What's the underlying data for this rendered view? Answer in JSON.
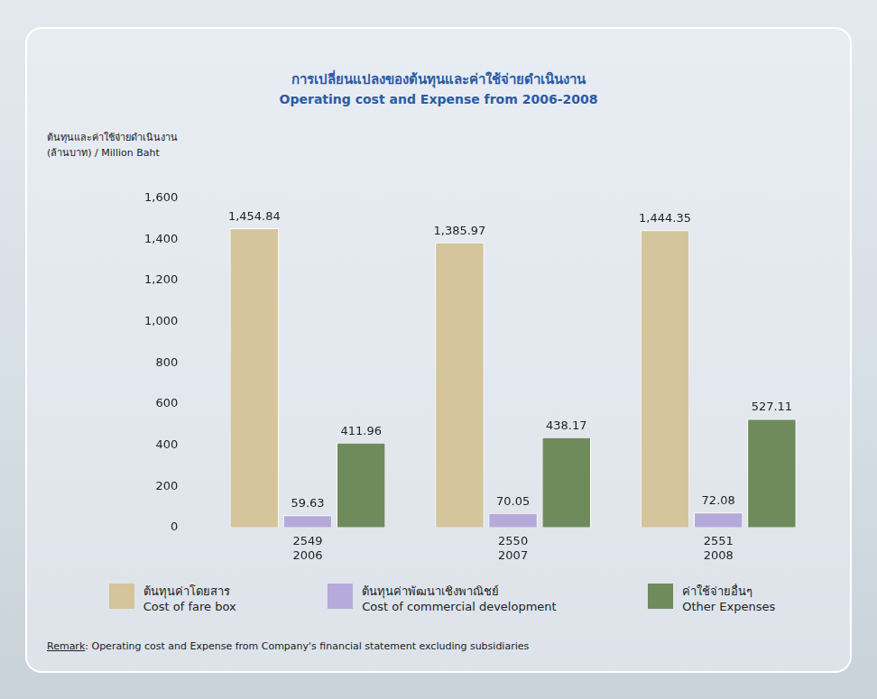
{
  "chart_data": {
    "type": "bar",
    "title": "การเปลี่ยนแปลงของต้นทุนและค่าใช้จ่ายดำเนินงาน",
    "subtitle": "Operating cost and Expense from 2006-2008",
    "y_label": "ต้นทุนและค่าใช้จ่ายดำเนินงาน\n(ล้านบาท) / Million Baht",
    "categories": [
      [
        "2549",
        "2006"
      ],
      [
        "2550",
        "2007"
      ],
      [
        "2551",
        "2008"
      ]
    ],
    "series": [
      {
        "name": "ต้นทุนค่าโดยสาร\nCost of fare box",
        "color": "#d5c59c",
        "values": [
          1454.84,
          1385.97,
          1444.35
        ],
        "value_labels": [
          "1,454.84",
          "1,385.97",
          "1,444.35"
        ]
      },
      {
        "name": "ต้นทุนค่าพัฒนาเชิงพาณิชย์\nCost of commercial development",
        "color": "#b6aadb",
        "values": [
          59.63,
          70.05,
          72.08
        ]
      },
      {
        "name": "ค่าใช้จ่ายอื่นๆ\nOther Expenses",
        "color": "#6f8b5b",
        "values": [
          411.96,
          438.17,
          527.11
        ]
      }
    ],
    "ylim": [
      0,
      1600
    ],
    "yticks": [
      0,
      200,
      400,
      600,
      800,
      {
        "value": 1000,
        "label": "1,000"
      },
      {
        "value": 1200,
        "label": "1,200"
      },
      {
        "value": 1400,
        "label": "1,400"
      },
      {
        "value": 1600,
        "label": "1,600"
      }
    ],
    "grid": false,
    "legend": "bottom",
    "data_labels": true,
    "annotations": [
      "Remark: Operating cost and Expense from Company's financial statement excluding subsidiaries"
    ]
  }
}
